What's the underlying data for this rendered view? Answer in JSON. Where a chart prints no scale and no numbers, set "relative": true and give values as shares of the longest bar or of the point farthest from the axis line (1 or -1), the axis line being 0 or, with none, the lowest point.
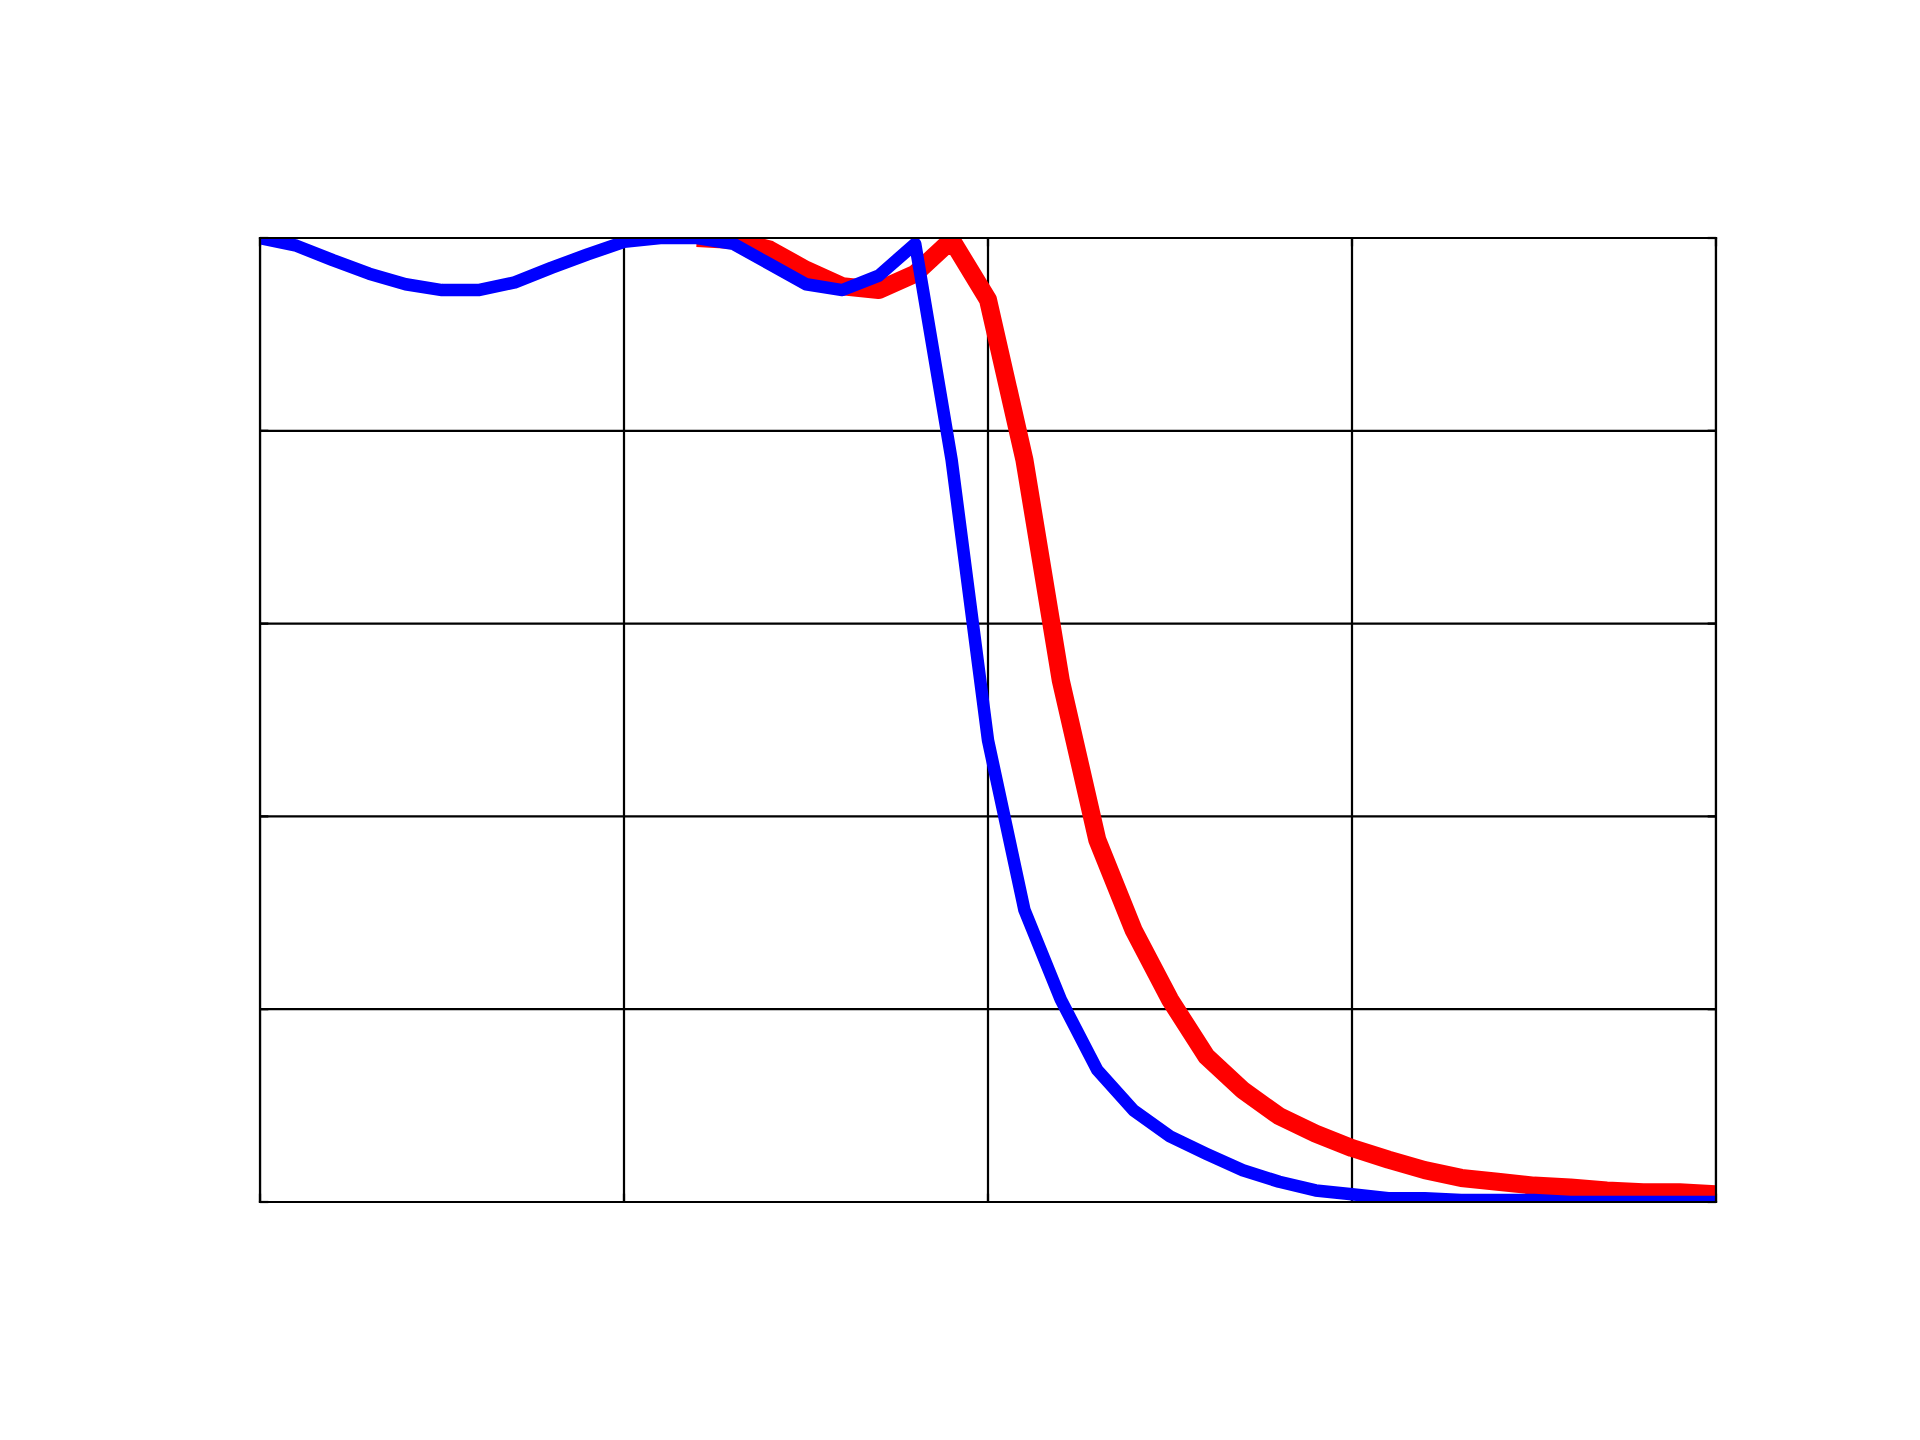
{
  "chart_data": {
    "type": "line",
    "relative": true,
    "grid": true,
    "line_style": "solid",
    "categories": [
      null,
      null,
      null,
      null,
      null,
      null,
      null,
      null,
      null,
      null,
      null,
      null,
      null,
      null,
      null,
      null,
      null,
      null,
      null,
      null,
      null,
      null,
      null,
      null,
      null,
      null,
      null,
      null,
      null,
      null,
      null,
      null,
      null,
      null,
      null,
      null,
      null,
      null,
      null,
      null,
      null
    ],
    "series": [
      {
        "color": "#ff0000",
        "values": [
          null,
          null,
          null,
          null,
          null,
          null,
          null,
          null,
          null,
          null,
          null,
          null,
          1.0,
          0.998,
          0.988,
          0.967,
          0.95,
          0.946,
          0.963,
          0.998,
          0.936,
          0.77,
          0.541,
          0.376,
          0.282,
          0.21,
          0.151,
          0.116,
          0.089,
          0.071,
          0.056,
          0.044,
          0.033,
          0.025,
          0.021,
          0.017,
          0.015,
          0.012,
          0.01,
          0.01,
          0.008
        ]
      },
      {
        "color": "#0000ff",
        "values": [
          1.0,
          0.992,
          0.977,
          0.963,
          0.952,
          0.946,
          0.946,
          0.954,
          0.969,
          0.983,
          0.996,
          1.0,
          1.0,
          0.994,
          0.973,
          0.952,
          0.946,
          0.961,
          0.994,
          0.77,
          0.479,
          0.303,
          0.21,
          0.137,
          0.095,
          0.068,
          0.05,
          0.033,
          0.021,
          0.012,
          0.008,
          0.004,
          0.004,
          0.002,
          0.002,
          0.002,
          0.0,
          0.0,
          0.0,
          0.0,
          0.0
        ]
      }
    ]
  }
}
